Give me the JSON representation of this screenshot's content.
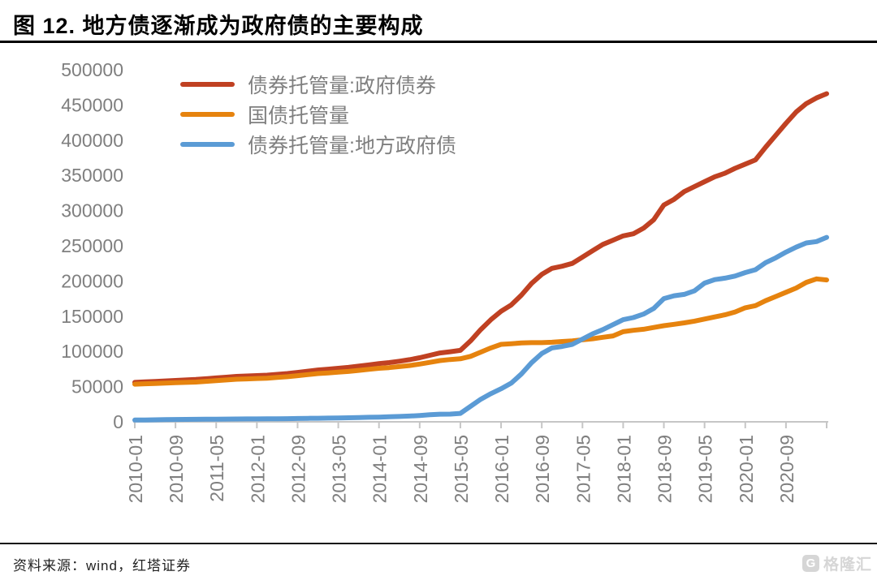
{
  "header": {
    "title": "图 12. 地方债逐渐成为政府债的主要构成"
  },
  "chart_data": {
    "type": "line",
    "title": "地方债逐渐成为政府债的主要构成",
    "xlabel": "",
    "ylabel": "",
    "ylim": [
      0,
      500000
    ],
    "ytick_step": 50000,
    "grid": false,
    "legend_position": "top-left",
    "axis_color": "#c6c6c6",
    "tick_label_color": "#7f7f7f",
    "x_tick_every": 4,
    "x_tick_labels": [
      "2010-01",
      "2010-09",
      "2011-05",
      "2012-01",
      "2012-09",
      "2013-05",
      "2014-01",
      "2014-09",
      "2015-05",
      "2016-01",
      "2016-09",
      "2017-05",
      "2018-01",
      "2018-09",
      "2019-05",
      "2020-01",
      "2020-09"
    ],
    "x": [
      "2010-01",
      "2010-03",
      "2010-05",
      "2010-07",
      "2010-09",
      "2010-11",
      "2011-01",
      "2011-03",
      "2011-05",
      "2011-07",
      "2011-09",
      "2011-11",
      "2012-01",
      "2012-03",
      "2012-05",
      "2012-07",
      "2012-09",
      "2012-11",
      "2013-01",
      "2013-03",
      "2013-05",
      "2013-07",
      "2013-09",
      "2013-11",
      "2014-01",
      "2014-03",
      "2014-05",
      "2014-07",
      "2014-09",
      "2014-11",
      "2015-01",
      "2015-03",
      "2015-05",
      "2015-07",
      "2015-09",
      "2015-11",
      "2016-01",
      "2016-03",
      "2016-05",
      "2016-07",
      "2016-09",
      "2016-11",
      "2017-01",
      "2017-03",
      "2017-05",
      "2017-07",
      "2017-09",
      "2017-11",
      "2018-01",
      "2018-03",
      "2018-05",
      "2018-07",
      "2018-09",
      "2018-11",
      "2019-01",
      "2019-03",
      "2019-05",
      "2019-07",
      "2019-09",
      "2019-11",
      "2020-01",
      "2020-03",
      "2020-05",
      "2020-07",
      "2020-09",
      "2020-11",
      "2021-01",
      "2021-03",
      "2021-05"
    ],
    "series": [
      {
        "name": "债券托管量:政府债券",
        "color": "#c04122",
        "values": [
          56000,
          56700,
          57400,
          58100,
          58800,
          59500,
          60100,
          61200,
          62300,
          63400,
          64500,
          65100,
          65700,
          66300,
          67400,
          68500,
          70200,
          71900,
          73600,
          74800,
          76000,
          77300,
          79100,
          80900,
          82700,
          84100,
          86100,
          88200,
          91000,
          94500,
          97800,
          99500,
          101500,
          115000,
          131000,
          145000,
          157000,
          166000,
          180000,
          196500,
          209500,
          218000,
          221000,
          225000,
          234000,
          243000,
          252000,
          258000,
          264000,
          267000,
          275000,
          287000,
          308000,
          316000,
          327000,
          334000,
          341000,
          348000,
          353000,
          360000,
          366000,
          372000,
          390000,
          407000,
          424000,
          440000,
          452000,
          460000,
          466000
        ]
      },
      {
        "name": "国债托管量",
        "color": "#e6830e",
        "values": [
          53500,
          54000,
          54500,
          55000,
          55500,
          56000,
          56500,
          57500,
          58500,
          59500,
          60500,
          61000,
          61500,
          62000,
          63000,
          64000,
          65500,
          67000,
          68500,
          69500,
          70500,
          71500,
          73000,
          74500,
          76000,
          77000,
          78500,
          80000,
          82000,
          84500,
          87000,
          88500,
          89500,
          93000,
          99000,
          105000,
          110000,
          111000,
          112000,
          112500,
          112500,
          113000,
          114000,
          115000,
          116500,
          118000,
          120000,
          122000,
          128000,
          130000,
          131500,
          134000,
          136500,
          138500,
          140500,
          143000,
          146000,
          149000,
          152000,
          156000,
          162000,
          165000,
          172000,
          178000,
          184000,
          190000,
          198000,
          203000,
          201500
        ]
      },
      {
        "name": "债券托管量:地方政府债",
        "color": "#5b9bd5",
        "values": [
          2500,
          2700,
          2900,
          3100,
          3300,
          3500,
          3600,
          3700,
          3800,
          3900,
          4000,
          4100,
          4200,
          4300,
          4400,
          4500,
          4700,
          4900,
          5100,
          5300,
          5500,
          5800,
          6100,
          6400,
          6700,
          7100,
          7600,
          8200,
          9000,
          10000,
          10800,
          11000,
          12000,
          22000,
          32000,
          40000,
          47000,
          55000,
          68000,
          84000,
          97000,
          105000,
          107000,
          110000,
          117500,
          125000,
          131000,
          138000,
          145000,
          148000,
          153000,
          161000,
          175000,
          179000,
          181000,
          186000,
          197000,
          202000,
          204000,
          207000,
          212000,
          216000,
          226000,
          233000,
          241000,
          248000,
          254000,
          256000,
          262000
        ]
      }
    ]
  },
  "footer": {
    "source": "资料来源：wind，红塔证券"
  },
  "watermark": {
    "logo_letter": "G",
    "brand": "格隆汇"
  }
}
